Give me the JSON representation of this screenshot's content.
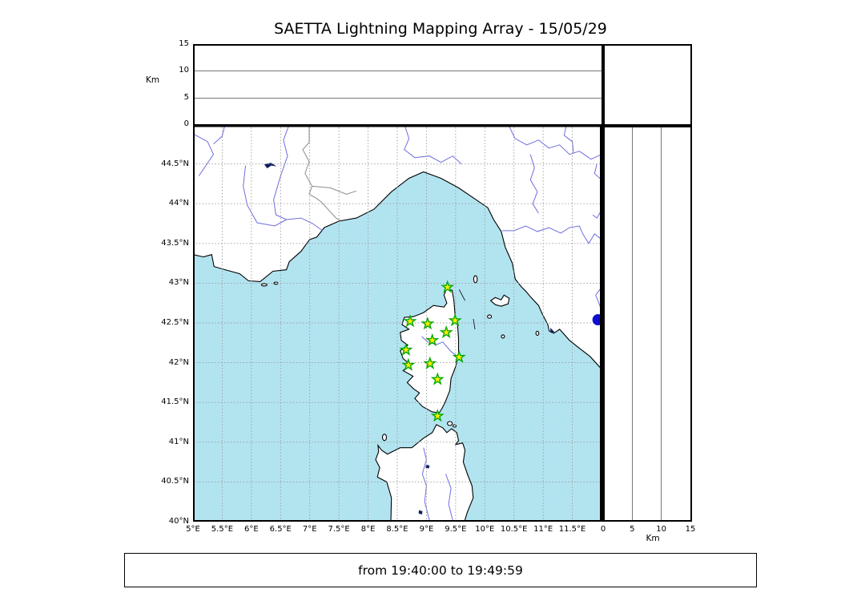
{
  "title": "SAETTA Lightning Mapping Array - 15/05/29",
  "footer": {
    "time_window": "from 19:40:00 to 19:49:59"
  },
  "colors": {
    "sea": "#b2e4f0",
    "land": "#ffffff",
    "coast": "#000000",
    "river": "#6e6ee0",
    "admin_border": "#8c8c8c",
    "grid": "#999999",
    "lake": "#0b1f5e",
    "station_fill": "#ffec00",
    "station_stroke": "#00a800",
    "source_dot": "#0d0dcf"
  },
  "chart_data": {
    "type": "map-scatter",
    "title": "SAETTA Lightning Mapping Array - 15/05/29",
    "map_extent": {
      "lon_min": 5,
      "lon_max": 12,
      "lat_min": 40,
      "lat_max": 45
    },
    "altitude_axis": {
      "label": "Km",
      "ticks": [
        0,
        5,
        10,
        15
      ],
      "range": [
        0,
        15
      ]
    },
    "lat_tick_labels": [
      "40°N",
      "40.5°N",
      "41°N",
      "41.5°N",
      "42°N",
      "42.5°N",
      "43°N",
      "43.5°N",
      "44°N",
      "44.5°N"
    ],
    "lon_tick_labels": [
      "5°E",
      "5.5°E",
      "6°E",
      "6.5°E",
      "7°E",
      "7.5°E",
      "8°E",
      "8.5°E",
      "9°E",
      "9.5°E",
      "10°E",
      "10.5°E",
      "11°E",
      "11.5°E"
    ],
    "grid": true,
    "stations": [
      {
        "lon": 9.36,
        "lat": 42.95
      },
      {
        "lon": 8.72,
        "lat": 42.52
      },
      {
        "lon": 9.02,
        "lat": 42.49
      },
      {
        "lon": 9.49,
        "lat": 42.53
      },
      {
        "lon": 9.34,
        "lat": 42.38
      },
      {
        "lon": 9.1,
        "lat": 42.28
      },
      {
        "lon": 8.65,
        "lat": 42.16
      },
      {
        "lon": 9.56,
        "lat": 42.07
      },
      {
        "lon": 8.69,
        "lat": 41.97
      },
      {
        "lon": 9.06,
        "lat": 41.99
      },
      {
        "lon": 9.19,
        "lat": 41.79
      },
      {
        "lon": 9.19,
        "lat": 41.33
      }
    ],
    "source_points": [
      {
        "lon": 11.94,
        "lat": 42.54
      }
    ],
    "time_window": "from 19:40:00 to 19:49:59"
  }
}
